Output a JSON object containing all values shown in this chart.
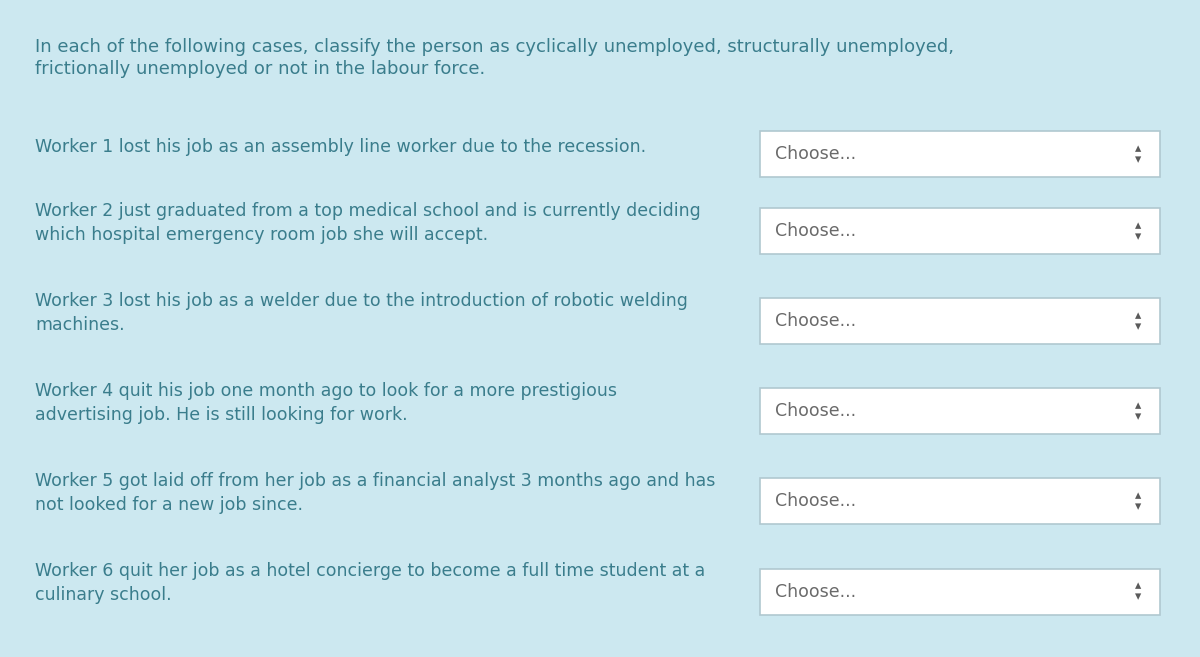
{
  "bg_color": "#cce8f0",
  "text_color": "#3a7d8c",
  "dropdown_bg": "#ffffff",
  "dropdown_border": "#b0c8d0",
  "dropdown_text": "#6a6a6a",
  "arrow_color": "#5a5a5a",
  "header_line1": "In each of the following cases, classify the person as cyclically unemployed, structurally unemployed,",
  "header_line2": "frictionally unemployed or not in the labour force.",
  "header_fontsize": 13.0,
  "worker_fontsize": 12.5,
  "dropdown_label": "Choose...",
  "workers": [
    [
      "Worker 1 lost his job as an assembly line worker due to the recession."
    ],
    [
      "Worker 2 just graduated from a top medical school and is currently deciding",
      "which hospital emergency room job she will accept."
    ],
    [
      "Worker 3 lost his job as a welder due to the introduction of robotic welding",
      "machines."
    ],
    [
      "Worker 4 quit his job one month ago to look for a more prestigious",
      "advertising job. He is still looking for work."
    ],
    [
      "Worker 5 got laid off from her job as a financial analyst 3 months ago and has",
      "not looked for a new job since."
    ],
    [
      "Worker 6 quit her job as a hotel concierge to become a full time student at a",
      "culinary school."
    ]
  ],
  "fig_width": 12.0,
  "fig_height": 6.57,
  "dpi": 100
}
